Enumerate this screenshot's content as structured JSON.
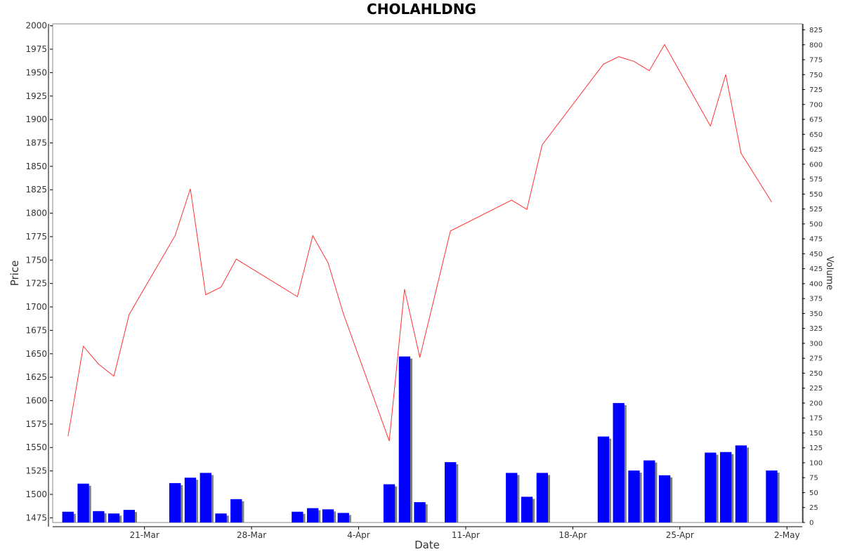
{
  "chart_data": {
    "type": "line+bar",
    "title": "CHOLAHLDNG",
    "xlabel": "Date",
    "ylabel": "Price",
    "y2label": "Volume",
    "ylim": [
      1470,
      2002
    ],
    "y2lim": [
      0,
      835
    ],
    "yticks": [
      1475,
      1500,
      1525,
      1550,
      1575,
      1600,
      1625,
      1650,
      1675,
      1700,
      1725,
      1750,
      1775,
      1800,
      1825,
      1850,
      1875,
      1900,
      1925,
      1950,
      1975,
      2000
    ],
    "y2ticks": [
      0,
      25,
      50,
      75,
      100,
      125,
      150,
      175,
      200,
      225,
      250,
      275,
      300,
      325,
      350,
      375,
      400,
      425,
      450,
      475,
      500,
      525,
      550,
      575,
      600,
      625,
      650,
      675,
      700,
      725,
      750,
      775,
      800,
      825
    ],
    "xticks": [
      {
        "label": "21-Mar",
        "x": "2022-03-21"
      },
      {
        "label": "28-Mar",
        "x": "2022-03-28"
      },
      {
        "label": "4-Apr",
        "x": "2022-04-04"
      },
      {
        "label": "11-Apr",
        "x": "2022-04-11"
      },
      {
        "label": "18-Apr",
        "x": "2022-04-18"
      },
      {
        "label": "25-Apr",
        "x": "2022-04-25"
      },
      {
        "label": "2-May",
        "x": "2022-05-02"
      }
    ],
    "xlim": [
      "2022-03-15",
      "2022-05-03"
    ],
    "grid": false,
    "colors": {
      "price_line": "#ff3333",
      "volume_bar": "#0000ff",
      "volume_shadow": "#808080",
      "axis": "#000000"
    },
    "series": [
      {
        "name": "Price",
        "type": "line",
        "points": [
          {
            "x": "2022-03-16",
            "y": 1562
          },
          {
            "x": "2022-03-17",
            "y": 1658
          },
          {
            "x": "2022-03-18",
            "y": 1639
          },
          {
            "x": "2022-03-19",
            "y": 1626
          },
          {
            "x": "2022-03-20",
            "y": 1692
          },
          {
            "x": "2022-03-23",
            "y": 1776
          },
          {
            "x": "2022-03-24",
            "y": 1826
          },
          {
            "x": "2022-03-25",
            "y": 1713
          },
          {
            "x": "2022-03-26",
            "y": 1721
          },
          {
            "x": "2022-03-27",
            "y": 1751
          },
          {
            "x": "2022-03-31",
            "y": 1711
          },
          {
            "x": "2022-04-01",
            "y": 1776
          },
          {
            "x": "2022-04-02",
            "y": 1747
          },
          {
            "x": "2022-04-03",
            "y": 1693
          },
          {
            "x": "2022-04-06",
            "y": 1557
          },
          {
            "x": "2022-04-07",
            "y": 1719
          },
          {
            "x": "2022-04-08",
            "y": 1646
          },
          {
            "x": "2022-04-10",
            "y": 1781
          },
          {
            "x": "2022-04-14",
            "y": 1814
          },
          {
            "x": "2022-04-15",
            "y": 1804
          },
          {
            "x": "2022-04-16",
            "y": 1873
          },
          {
            "x": "2022-04-20",
            "y": 1959
          },
          {
            "x": "2022-04-21",
            "y": 1967
          },
          {
            "x": "2022-04-22",
            "y": 1962
          },
          {
            "x": "2022-04-23",
            "y": 1952
          },
          {
            "x": "2022-04-24",
            "y": 1980
          },
          {
            "x": "2022-04-27",
            "y": 1893
          },
          {
            "x": "2022-04-28",
            "y": 1948
          },
          {
            "x": "2022-04-29",
            "y": 1864
          },
          {
            "x": "2022-05-01",
            "y": 1812
          }
        ]
      },
      {
        "name": "Volume",
        "type": "bar",
        "points": [
          {
            "x": "2022-03-16",
            "y": 18
          },
          {
            "x": "2022-03-17",
            "y": 65
          },
          {
            "x": "2022-03-18",
            "y": 19
          },
          {
            "x": "2022-03-19",
            "y": 15
          },
          {
            "x": "2022-03-20",
            "y": 21
          },
          {
            "x": "2022-03-23",
            "y": 66
          },
          {
            "x": "2022-03-24",
            "y": 75
          },
          {
            "x": "2022-03-25",
            "y": 83
          },
          {
            "x": "2022-03-26",
            "y": 15
          },
          {
            "x": "2022-03-27",
            "y": 39
          },
          {
            "x": "2022-03-31",
            "y": 18
          },
          {
            "x": "2022-04-01",
            "y": 24
          },
          {
            "x": "2022-04-02",
            "y": 22
          },
          {
            "x": "2022-04-03",
            "y": 16
          },
          {
            "x": "2022-04-06",
            "y": 64
          },
          {
            "x": "2022-04-07",
            "y": 278
          },
          {
            "x": "2022-04-08",
            "y": 34
          },
          {
            "x": "2022-04-10",
            "y": 101
          },
          {
            "x": "2022-04-14",
            "y": 83
          },
          {
            "x": "2022-04-15",
            "y": 43
          },
          {
            "x": "2022-04-16",
            "y": 83
          },
          {
            "x": "2022-04-20",
            "y": 144
          },
          {
            "x": "2022-04-21",
            "y": 200
          },
          {
            "x": "2022-04-22",
            "y": 87
          },
          {
            "x": "2022-04-23",
            "y": 104
          },
          {
            "x": "2022-04-24",
            "y": 79
          },
          {
            "x": "2022-04-27",
            "y": 117
          },
          {
            "x": "2022-04-28",
            "y": 118
          },
          {
            "x": "2022-04-29",
            "y": 129
          },
          {
            "x": "2022-05-01",
            "y": 87
          }
        ]
      }
    ]
  }
}
